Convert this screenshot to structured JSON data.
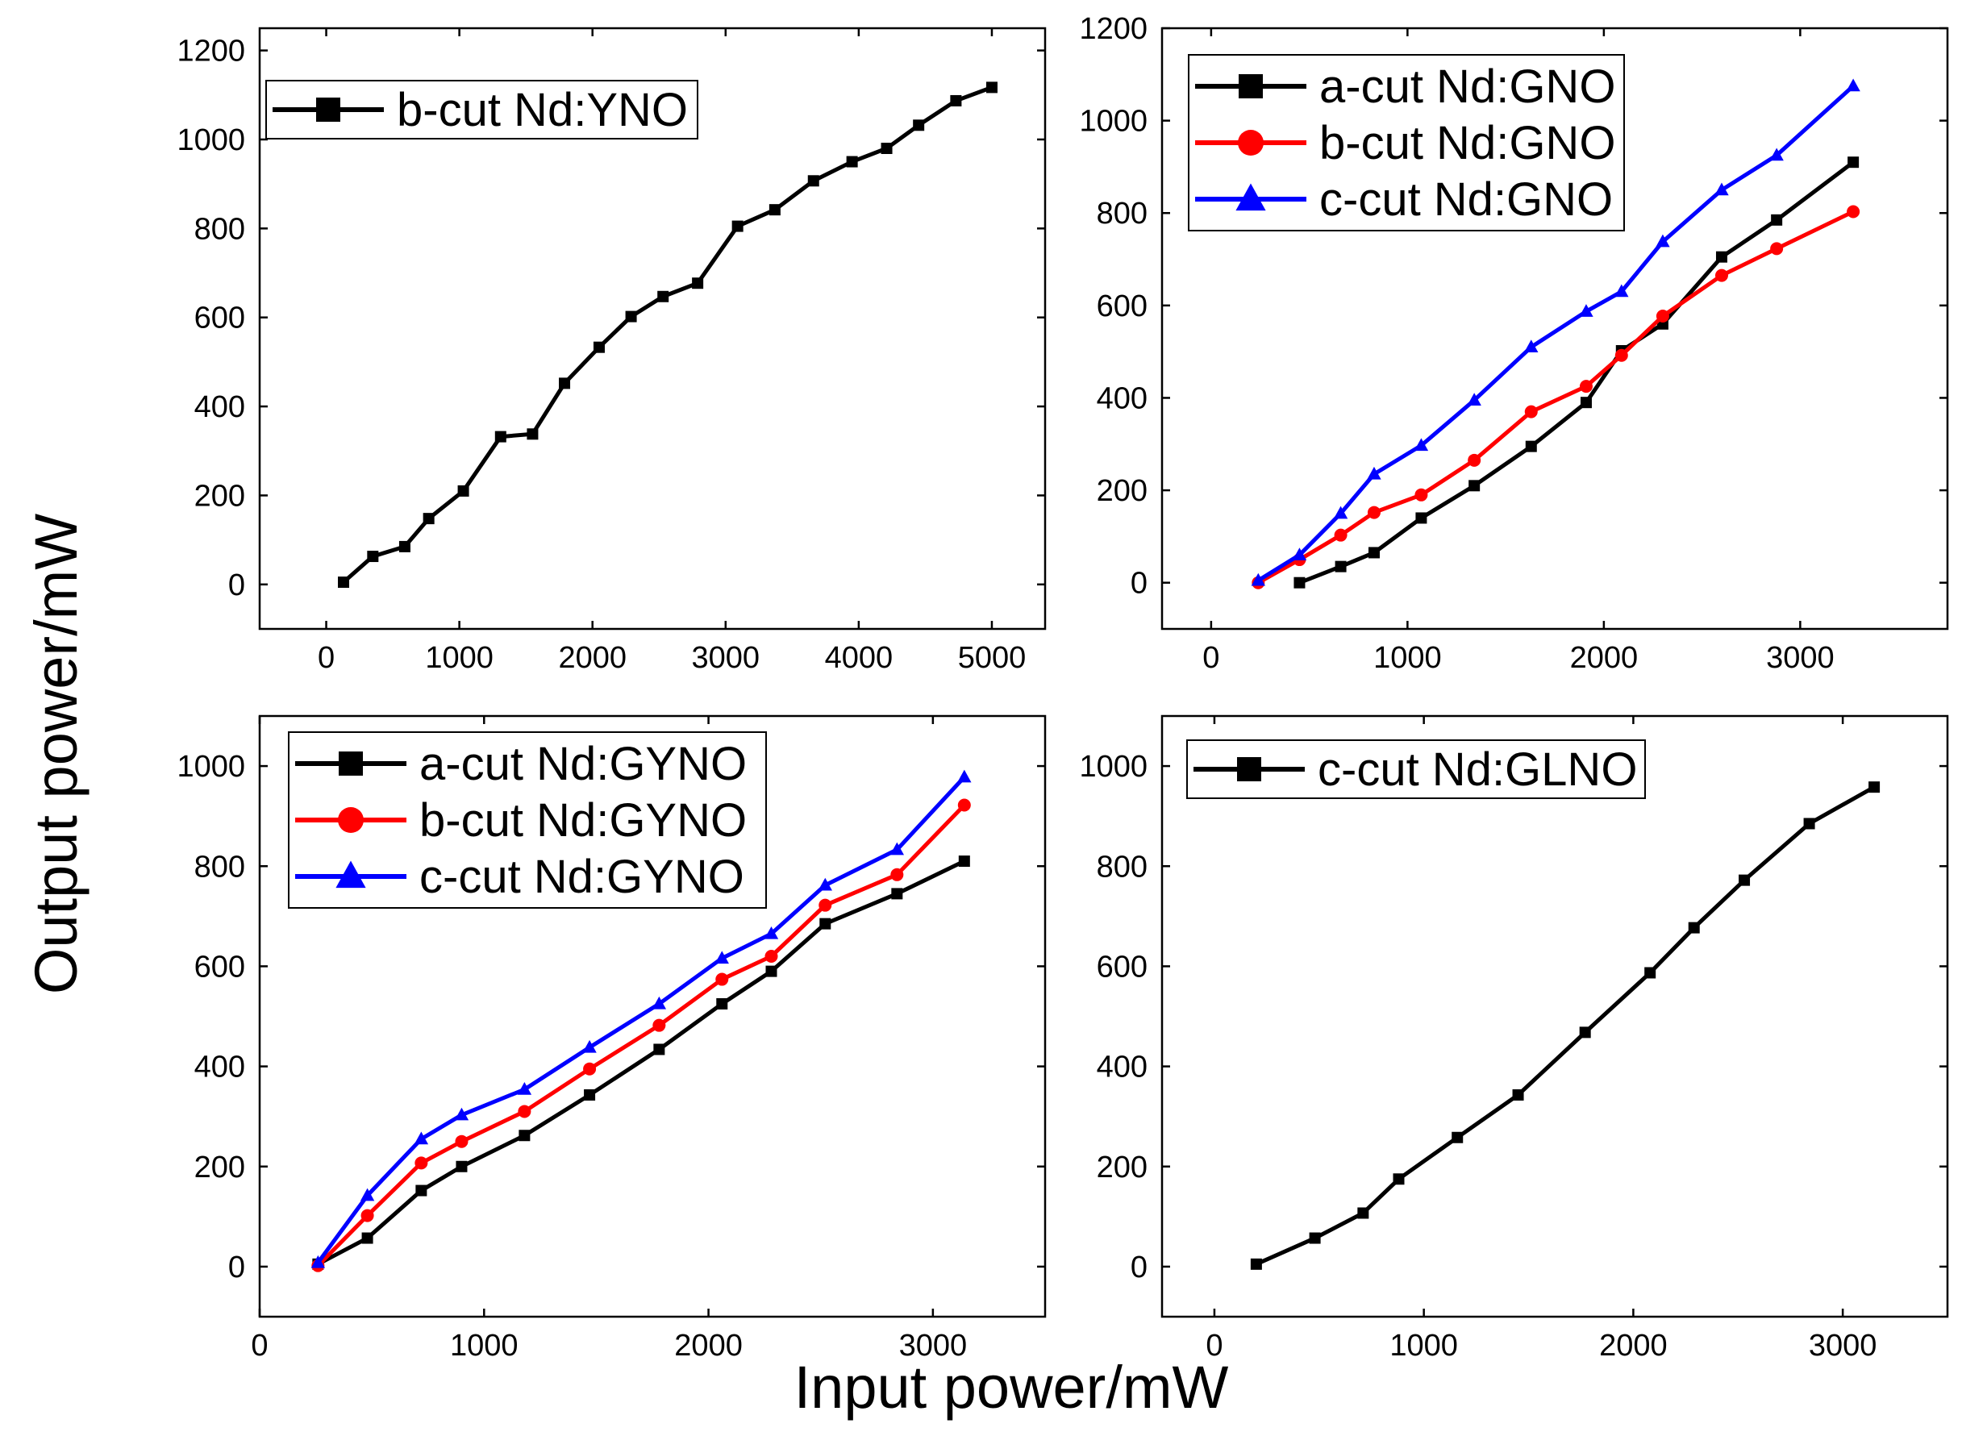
{
  "figure": {
    "xlabel": "Input power/mW",
    "ylabel": "Output power/mW"
  },
  "colors": {
    "black": "#000000",
    "red": "#ff0000",
    "blue": "#0000ff"
  },
  "chart_data": [
    {
      "id": "tl",
      "type": "line",
      "xlim": [
        -500,
        5400
      ],
      "ylim": [
        -100,
        1250
      ],
      "xticks": [
        0,
        1000,
        2000,
        3000,
        4000,
        5000
      ],
      "yticks": [
        0,
        200,
        400,
        600,
        800,
        1000,
        1200
      ],
      "legend_position": "top-left",
      "series": [
        {
          "name": "b-cut Nd:YNO",
          "color": "#000000",
          "marker": "square",
          "x": [
            130,
            350,
            590,
            770,
            1030,
            1310,
            1550,
            1790,
            2050,
            2290,
            2530,
            2790,
            3090,
            3370,
            3660,
            3950,
            4210,
            4450,
            4730,
            5000
          ],
          "y": [
            5,
            63,
            85,
            148,
            210,
            332,
            338,
            452,
            533,
            602,
            647,
            677,
            805,
            842,
            907,
            950,
            980,
            1032,
            1087,
            1117
          ]
        }
      ]
    },
    {
      "id": "tr",
      "type": "line",
      "xlim": [
        -250,
        3750
      ],
      "ylim": [
        -100,
        1200
      ],
      "xticks": [
        0,
        1000,
        2000,
        3000
      ],
      "yticks": [
        0,
        200,
        400,
        600,
        800,
        1000,
        1200
      ],
      "legend_position": "top-left",
      "series": [
        {
          "name": "a-cut Nd:GNO",
          "color": "#000000",
          "marker": "square",
          "x": [
            450,
            660,
            830,
            1070,
            1340,
            1630,
            1910,
            2090,
            2300,
            2600,
            2880,
            3270
          ],
          "y": [
            0,
            35,
            65,
            140,
            210,
            295,
            390,
            502,
            560,
            705,
            785,
            910
          ]
        },
        {
          "name": "b-cut Nd:GNO",
          "color": "#ff0000",
          "marker": "circle",
          "x": [
            240,
            450,
            660,
            830,
            1070,
            1340,
            1630,
            1910,
            2090,
            2300,
            2600,
            2880,
            3270
          ],
          "y": [
            0,
            50,
            103,
            152,
            190,
            265,
            370,
            425,
            492,
            577,
            665,
            723,
            803
          ]
        },
        {
          "name": "c-cut Nd:GNO",
          "color": "#0000ff",
          "marker": "triangle",
          "x": [
            240,
            450,
            660,
            830,
            1070,
            1340,
            1630,
            1910,
            2090,
            2300,
            2600,
            2880,
            3270
          ],
          "y": [
            5,
            60,
            150,
            235,
            297,
            395,
            510,
            587,
            630,
            738,
            850,
            925,
            1075
          ]
        }
      ]
    },
    {
      "id": "bl",
      "type": "line",
      "xlim": [
        0,
        3500
      ],
      "ylim": [
        -100,
        1100
      ],
      "xticks": [
        0,
        1000,
        2000,
        3000
      ],
      "yticks": [
        0,
        200,
        400,
        600,
        800,
        1000
      ],
      "legend_position": "top-left",
      "series": [
        {
          "name": "a-cut Nd:GYNO",
          "color": "#000000",
          "marker": "square",
          "x": [
            260,
            480,
            720,
            900,
            1180,
            1470,
            1780,
            2060,
            2280,
            2520,
            2840,
            3140
          ],
          "y": [
            5,
            57,
            152,
            200,
            262,
            343,
            434,
            525,
            590,
            685,
            745,
            810
          ]
        },
        {
          "name": "b-cut Nd:GYNO",
          "color": "#ff0000",
          "marker": "circle",
          "x": [
            260,
            480,
            720,
            900,
            1180,
            1470,
            1780,
            2060,
            2280,
            2520,
            2840,
            3140
          ],
          "y": [
            2,
            102,
            207,
            250,
            310,
            395,
            482,
            574,
            620,
            722,
            783,
            922
          ]
        },
        {
          "name": "c-cut Nd:GYNO",
          "color": "#0000ff",
          "marker": "triangle",
          "x": [
            260,
            480,
            720,
            900,
            1180,
            1470,
            1780,
            2060,
            2280,
            2520,
            2840,
            3140
          ],
          "y": [
            8,
            142,
            255,
            303,
            354,
            438,
            525,
            616,
            665,
            762,
            833,
            978
          ]
        }
      ]
    },
    {
      "id": "br",
      "type": "line",
      "xlim": [
        -250,
        3500
      ],
      "ylim": [
        -100,
        1100
      ],
      "xticks": [
        0,
        1000,
        2000,
        3000
      ],
      "yticks": [
        0,
        200,
        400,
        600,
        800,
        1000
      ],
      "legend_position": "top-left",
      "series": [
        {
          "name": "c-cut Nd:GLNO",
          "color": "#000000",
          "marker": "square",
          "x": [
            200,
            480,
            710,
            880,
            1160,
            1450,
            1770,
            2080,
            2290,
            2530,
            2840,
            3150
          ],
          "y": [
            5,
            57,
            107,
            175,
            258,
            343,
            468,
            587,
            677,
            772,
            885,
            958
          ]
        }
      ]
    }
  ]
}
